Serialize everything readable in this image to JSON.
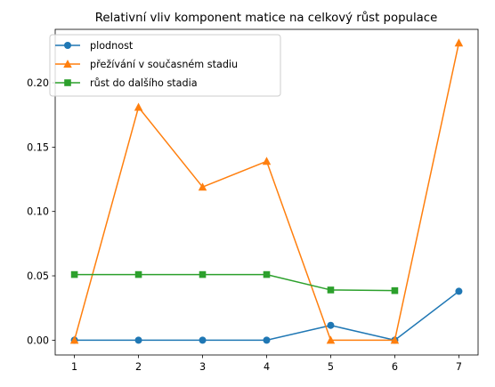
{
  "chart_data": {
    "type": "line",
    "title": "Relativní vliv komponent matice na celkový růst populace",
    "xlabel": "",
    "ylabel": "",
    "x": [
      1,
      2,
      3,
      4,
      5,
      6,
      7
    ],
    "xlim": [
      0.7,
      7.3
    ],
    "ylim": [
      -0.0115,
      0.2415
    ],
    "xticks": [
      1,
      2,
      3,
      4,
      5,
      6,
      7
    ],
    "yticks": [
      0.0,
      0.05,
      0.1,
      0.15,
      0.2
    ],
    "ytick_labels": [
      "0.00",
      "0.05",
      "0.10",
      "0.15",
      "0.20"
    ],
    "grid": false,
    "legend_position": "upper-left",
    "series": [
      {
        "name": "plodnost",
        "color": "#1f77b4",
        "marker": "circle",
        "x": [
          1,
          2,
          3,
          4,
          5,
          6,
          7
        ],
        "values": [
          0.0,
          0.0,
          0.0,
          0.0,
          0.0115,
          0.0,
          0.038
        ]
      },
      {
        "name": "přežívání v současném stadiu",
        "color": "#ff7f0e",
        "marker": "triangle",
        "x": [
          1,
          2,
          3,
          4,
          5,
          6,
          7
        ],
        "values": [
          0.0,
          0.181,
          0.119,
          0.139,
          0.0,
          0.0,
          0.231
        ]
      },
      {
        "name": "růst do dalšího stadia",
        "color": "#2ca02c",
        "marker": "square",
        "x": [
          1,
          2,
          3,
          4,
          5,
          6
        ],
        "values": [
          0.051,
          0.051,
          0.051,
          0.051,
          0.039,
          0.0385
        ]
      }
    ]
  }
}
